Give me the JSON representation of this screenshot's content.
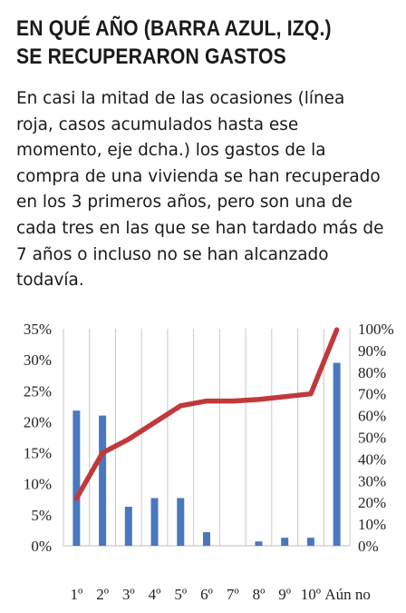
{
  "header": {
    "title_line1": "EN QUÉ AÑO (BARRA AZUL, IZQ.)",
    "title_line2": "SE RECUPERARON GASTOS",
    "description": "En casi la mitad de las ocasiones (línea roja, casos acumulados hasta ese momento, eje dcha.) los gastos de la compra de una vivienda se han recuperado en los 3 primeros años, pero son una de cada tres en las que se han tardado más de 7 años o incluso no se han alcanzado todavía."
  },
  "chart_data": {
    "type": "bar",
    "categories": [
      "1º",
      "2º",
      "3º",
      "4º",
      "5º",
      "6º",
      "7º",
      "8º",
      "9º",
      "10º",
      "Aún no"
    ],
    "series": [
      {
        "axis": "left",
        "type": "bar",
        "color": "#4a78c0",
        "values": [
          21.8,
          21.0,
          6.3,
          7.7,
          7.7,
          2.2,
          0,
          0.7,
          1.3,
          1.3,
          29.5
        ]
      },
      {
        "axis": "right",
        "type": "line",
        "color": "#c0393b",
        "values": [
          21.8,
          42.8,
          49.1,
          56.8,
          64.5,
          66.7,
          66.7,
          67.4,
          68.7,
          70.0,
          99.5
        ]
      }
    ],
    "y_left": {
      "ylim": [
        0,
        35
      ],
      "ticks": [
        "0%",
        "5%",
        "10%",
        "15%",
        "20%",
        "25%",
        "30%",
        "35%"
      ]
    },
    "y_right": {
      "ylim": [
        0,
        100
      ],
      "ticks": [
        "0%",
        "10%",
        "20%",
        "30%",
        "40%",
        "50%",
        "60%",
        "70%",
        "80%",
        "90%",
        "100%"
      ]
    },
    "grid": "vertical-category-separators"
  }
}
